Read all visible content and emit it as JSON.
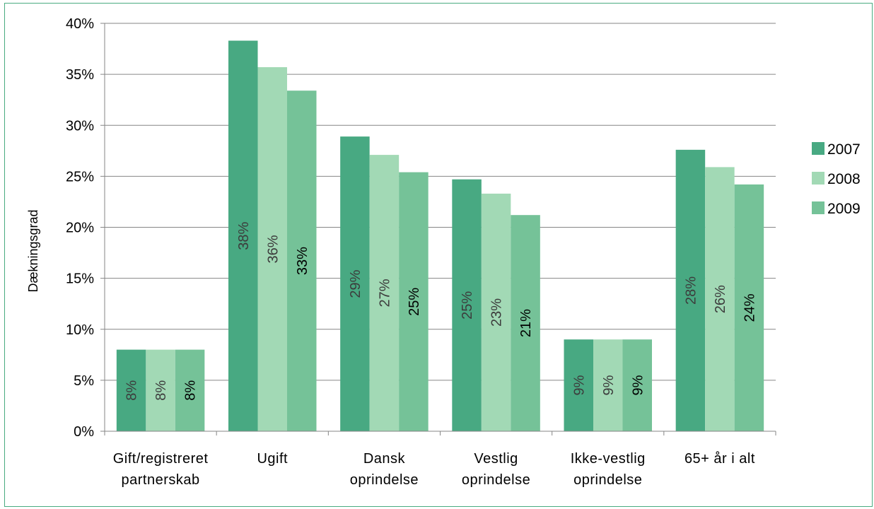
{
  "chart_data": {
    "type": "bar",
    "title": "",
    "xlabel": "",
    "ylabel": "Dækningsgrad",
    "ylim": [
      0,
      40
    ],
    "yticks": [
      "0%",
      "5%",
      "10%",
      "15%",
      "20%",
      "25%",
      "30%",
      "35%",
      "40%"
    ],
    "categories": [
      [
        "Gift/registreret",
        "partnerskab"
      ],
      [
        "Ugift"
      ],
      [
        "Dansk",
        "oprindelse"
      ],
      [
        "Vestlig",
        "oprindelse"
      ],
      [
        "Ikke-vestlig",
        "oprindelse"
      ],
      [
        "65+ år i alt"
      ]
    ],
    "series": [
      {
        "name": "2007",
        "color": "#48a982",
        "label_color": "#3c3c3c",
        "values": [
          8,
          38.3,
          28.9,
          24.7,
          9,
          27.6
        ],
        "labels": [
          "8%",
          "38%",
          "29%",
          "25%",
          "9%",
          "28%"
        ]
      },
      {
        "name": "2008",
        "color": "#a2d9b5",
        "label_color": "#3c3c3c",
        "values": [
          8,
          35.7,
          27.1,
          23.3,
          9,
          25.9
        ],
        "labels": [
          "8%",
          "36%",
          "27%",
          "23%",
          "9%",
          "26%"
        ]
      },
      {
        "name": "2009",
        "color": "#75c298",
        "label_color": "#000000",
        "values": [
          8,
          33.4,
          25.4,
          21.2,
          9,
          24.2
        ],
        "labels": [
          "8%",
          "33%",
          "25%",
          "21%",
          "9%",
          "24%"
        ]
      }
    ],
    "grid": true,
    "legend": "right"
  }
}
